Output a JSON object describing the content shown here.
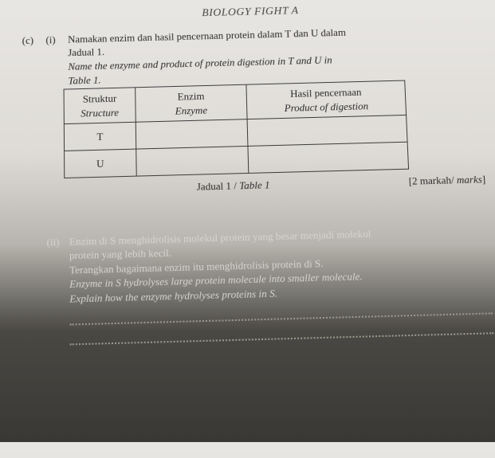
{
  "header": "BIOLOGY FIGHT A",
  "q": {
    "outer_label": "(c)",
    "part1": {
      "label": "(i)",
      "line1_ms": "Namakan enzim dan hasil pencernaan protein dalam T dan U dalam",
      "line2_ms": "Jadual 1.",
      "line1_en": "Name the enzyme and product of protein digestion in T and U in",
      "line2_en": "Table 1."
    }
  },
  "table": {
    "head": {
      "c0_ms": "Struktur",
      "c0_en": "Structure",
      "c1_ms": "Enzim",
      "c1_en": "Enzyme",
      "c2_ms": "Hasil pencernaan",
      "c2_en": "Product of digestion"
    },
    "rows": [
      {
        "label": "T",
        "enzyme": "",
        "product": ""
      },
      {
        "label": "U",
        "enzyme": "",
        "product": ""
      }
    ],
    "caption_ms": "Jadual 1 /",
    "caption_en": " Table 1",
    "marks_open": "[2 markah/ ",
    "marks_en": "marks",
    "marks_close": "]"
  },
  "part2": {
    "label": "(ii)",
    "l1_ms": "Enzim di S menghidrolisis molekul protein yang besar menjadi molekul",
    "l2_ms": "protein yang lebih kecil.",
    "l3_ms": "Terangkan bagaimana enzim itu menghidrolisis protein di S.",
    "l1_en": "Enzyme in S hydrolyses large protein molecule into smaller molecule.",
    "l2_en": "Explain how the enzyme hydrolyses proteins in S."
  }
}
